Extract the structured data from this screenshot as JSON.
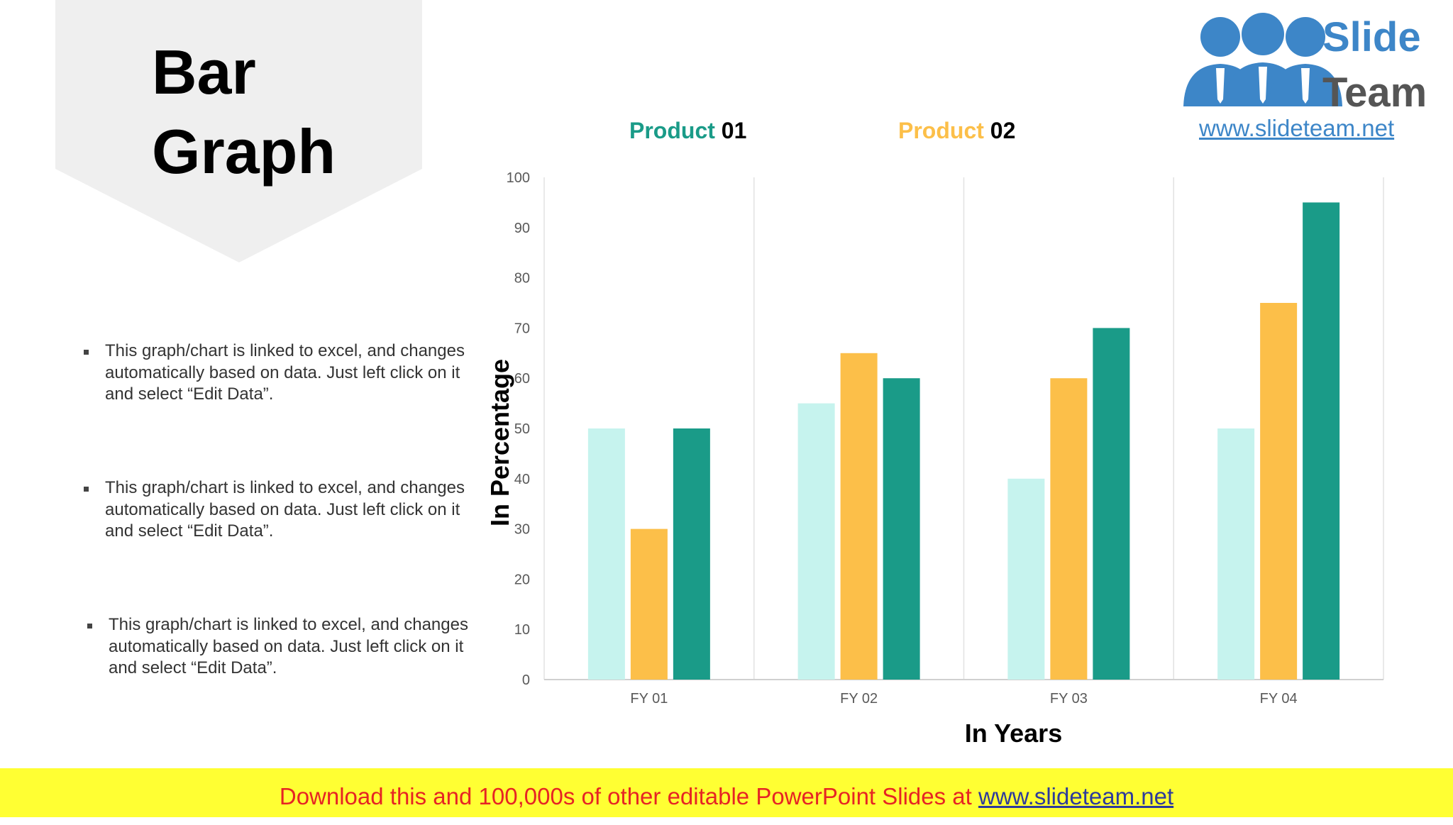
{
  "page": {
    "title_line1": "Bar",
    "title_line2": "Graph"
  },
  "bullets": [
    "This graph/chart is linked to excel, and changes automatically based on data. Just left click on it and select “Edit Data”.",
    "This graph/chart is linked to excel, and changes automatically based on data. Just left click on it and select “Edit Data”.",
    "This graph/chart is linked to excel, and changes automatically based on data. Just left click on it and select “Edit Data”."
  ],
  "logo": {
    "brand_line1": "Slide",
    "brand_line2": "Team",
    "url": "www.slideteam.net",
    "icon": "people-group-icon"
  },
  "footer": {
    "text": "Download this and 100,000s of other editable PowerPoint Slides at",
    "link": "www.slideteam.net"
  },
  "colors": {
    "series_1": "#c6f3ee",
    "series_2": "#fcbf49",
    "series_3": "#1a9b88",
    "grid": "#e2e2e2",
    "axis_text": "#595959",
    "footer_bg": "#ffff33",
    "footer_text": "#e62424",
    "logo_blue": "#3d86c8"
  },
  "chart_data": {
    "type": "bar",
    "categories": [
      "FY 01",
      "FY 02",
      "FY 03",
      "FY 04"
    ],
    "series": [
      {
        "values": [
          50,
          55,
          40,
          50
        ],
        "color": "#c6f3ee"
      },
      {
        "name": "Product 02",
        "legend_word": "Product",
        "legend_num": "02",
        "values": [
          30,
          65,
          60,
          75
        ],
        "color": "#fcbf49"
      },
      {
        "name": "Product 01",
        "legend_word": "Product",
        "legend_num": "01",
        "values": [
          50,
          60,
          70,
          95
        ],
        "color": "#1a9b88"
      }
    ],
    "yticks": [
      0,
      10,
      20,
      30,
      40,
      50,
      60,
      70,
      80,
      90,
      100
    ],
    "ylim": [
      0,
      100
    ],
    "xlabel": "In Years",
    "ylabel": "In Percentage",
    "legend_position": "top",
    "grid": "vertical category separators"
  }
}
